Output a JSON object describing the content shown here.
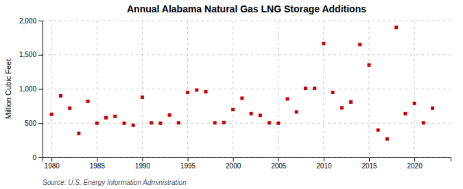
{
  "chart_data": {
    "type": "scatter",
    "title": "Annual Alabama Natural Gas LNG Storage Additions",
    "y_label": "Million Cubic Feet",
    "source": "Source: U.S. Energy Information Administration",
    "x": [
      1980,
      1981,
      1982,
      1983,
      1984,
      1985,
      1986,
      1987,
      1988,
      1989,
      1990,
      1991,
      1992,
      1993,
      1994,
      1995,
      1996,
      1997,
      1998,
      1999,
      2000,
      2001,
      2002,
      2003,
      2004,
      2005,
      2006,
      2007,
      2008,
      2009,
      2010,
      2011,
      2012,
      2013,
      2014,
      2015,
      2016,
      2017,
      2018,
      2019,
      2020,
      2021,
      2022
    ],
    "values": [
      630,
      900,
      720,
      350,
      820,
      500,
      580,
      600,
      500,
      470,
      880,
      505,
      500,
      620,
      505,
      950,
      985,
      960,
      505,
      510,
      700,
      865,
      640,
      615,
      505,
      500,
      855,
      665,
      1010,
      1010,
      1665,
      950,
      725,
      810,
      1650,
      1350,
      400,
      270,
      1900,
      640,
      790,
      505,
      720
    ],
    "color": "#cc0000",
    "marker": "square",
    "xlim": [
      1979,
      2024
    ],
    "xticks": [
      1980,
      1985,
      1990,
      1995,
      2000,
      2005,
      2010,
      2015,
      2020
    ],
    "ylim": [
      0,
      2000
    ],
    "yticks": [
      0,
      500,
      {
        "value": 1000,
        "label": "1,000"
      },
      {
        "value": 1500,
        "label": "1,500"
      },
      {
        "value": 2000,
        "label": "2,000"
      }
    ],
    "grid": true
  }
}
